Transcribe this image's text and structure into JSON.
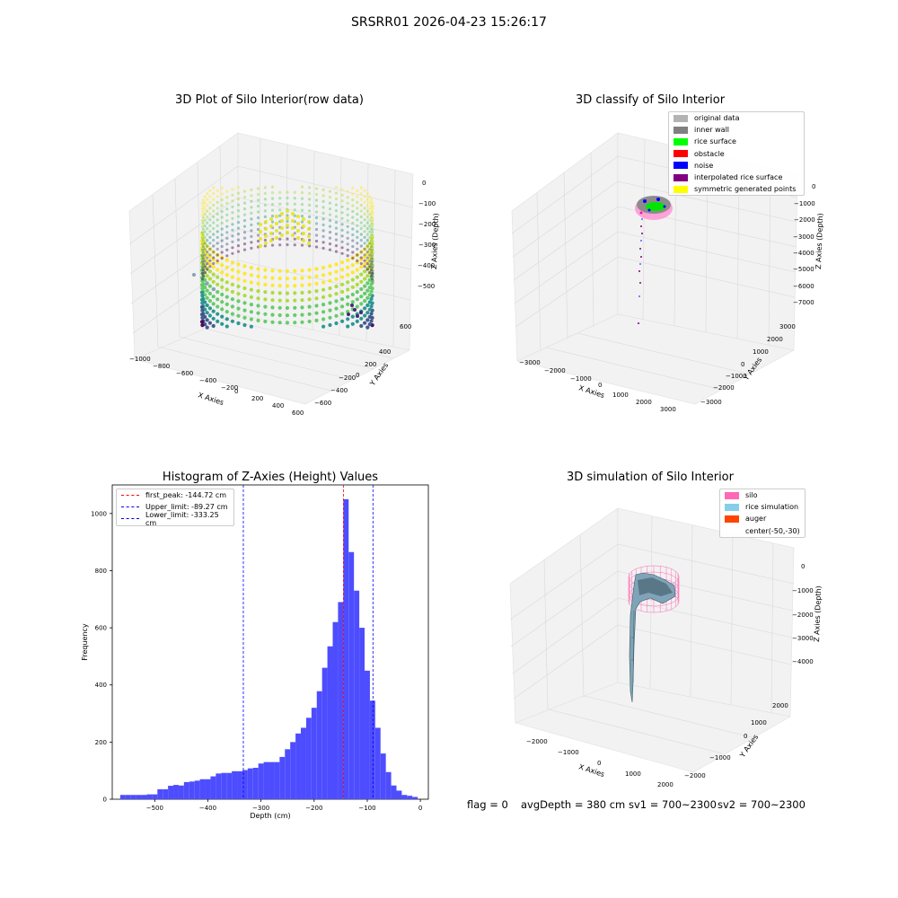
{
  "figure": {
    "suptitle": "SRSRR01 2026-04-23 15:26:17",
    "status": {
      "flag": "flag = 0",
      "avg_depth": "avgDepth = 380 cm",
      "sv1": "sv1 = 700~2300",
      "sv2": "sv2 = 700~2300"
    }
  },
  "panels": {
    "raw3d": {
      "title": "3D Plot of Silo Interior(row data)",
      "xlabel": "X Axies",
      "ylabel": "Y Axies",
      "zlabel": "Z Axies (Depth)",
      "xticks": [
        "−1000",
        "−800",
        "−600",
        "−400",
        "−200",
        "0",
        "200",
        "400",
        "600"
      ],
      "yticks": [
        "600",
        "400",
        "200",
        "0",
        "−200",
        "−400",
        "−600"
      ],
      "zticks": [
        "0",
        "−100",
        "−200",
        "−300",
        "−400",
        "−500"
      ]
    },
    "classify3d": {
      "title": "3D classify of Silo Interior",
      "xlabel": "X Axies",
      "ylabel": "Y Axies",
      "zlabel": "Z Axies (Depth)",
      "xticks": [
        "−3000",
        "−2000",
        "−1000",
        "0",
        "1000",
        "2000",
        "3000"
      ],
      "yticks": [
        "3000",
        "2000",
        "1000",
        "0",
        "−1000",
        "−2000",
        "−3000"
      ],
      "zticks": [
        "0",
        "−1000",
        "−2000",
        "−3000",
        "−4000",
        "−5000",
        "−6000",
        "−7000"
      ],
      "legend": [
        {
          "label": "original data",
          "color": "#b3b3b3"
        },
        {
          "label": "inner wall",
          "color": "#808080"
        },
        {
          "label": "rice surface",
          "color": "#00ff00"
        },
        {
          "label": "obstacle",
          "color": "#ff0000"
        },
        {
          "label": "noise",
          "color": "#0000ff"
        },
        {
          "label": "interpolated rice surface",
          "color": "#800080"
        },
        {
          "label": "symmetric generated points",
          "color": "#ffff00"
        }
      ]
    },
    "simulation3d": {
      "title": "3D simulation of Silo Interior",
      "xlabel": "X Axies",
      "ylabel": "Y Axies",
      "zlabel": "Z Axies (Depth)",
      "xticks": [
        "−2000",
        "−1000",
        "0",
        "1000",
        "2000"
      ],
      "yticks": [
        "2000",
        "1000",
        "0",
        "−1000",
        "−2000"
      ],
      "zticks": [
        "0",
        "−1000",
        "−2000",
        "−3000",
        "−4000"
      ],
      "legend": [
        {
          "label": "silo",
          "color": "#ff69b4"
        },
        {
          "label": "rice simulation",
          "color": "#87ceeb"
        },
        {
          "label": "auger",
          "color": "#ff4500"
        },
        {
          "label": "center(-50,-30)",
          "color": ""
        }
      ]
    }
  },
  "chart_data": [
    {
      "type": "scatter",
      "subtype": "3d",
      "title": "3D Plot of Silo Interior(row data)",
      "xlabel": "X Axies",
      "ylabel": "Y Axies",
      "zlabel": "Z Axies (Depth)",
      "xlim": [
        -1000,
        600
      ],
      "ylim": [
        -600,
        600
      ],
      "zlim": [
        -550,
        0
      ],
      "colormap": "viridis",
      "grid": true
    },
    {
      "type": "scatter",
      "subtype": "3d",
      "title": "3D classify of Silo Interior",
      "xlabel": "X Axies",
      "ylabel": "Y Axies",
      "zlabel": "Z Axies (Depth)",
      "xlim": [
        -3000,
        3000
      ],
      "ylim": [
        -3000,
        3000
      ],
      "zlim": [
        -7000,
        0
      ],
      "series": [
        {
          "name": "original data",
          "color": "#b3b3b3"
        },
        {
          "name": "inner wall",
          "color": "#808080"
        },
        {
          "name": "rice surface",
          "color": "#00ff00"
        },
        {
          "name": "obstacle",
          "color": "#ff0000"
        },
        {
          "name": "noise",
          "color": "#0000ff"
        },
        {
          "name": "interpolated rice surface",
          "color": "#800080"
        },
        {
          "name": "symmetric generated points",
          "color": "#ffff00"
        }
      ],
      "legend_position": "top-right",
      "grid": true
    },
    {
      "type": "bar",
      "subtype": "histogram",
      "title": "Histogram of Z-Axies (Height) Values",
      "xlabel": "Depth (cm)",
      "ylabel": "Frequency",
      "xlim": [
        -580,
        15
      ],
      "ylim": [
        0,
        1100
      ],
      "xticks": [
        -500,
        -400,
        -300,
        -200,
        -100,
        0
      ],
      "yticks": [
        0,
        200,
        400,
        600,
        800,
        1000
      ],
      "bar_color": "#4d4dff",
      "bin_width": 10,
      "bin_starts": [
        -565,
        -555,
        -545,
        -535,
        -525,
        -515,
        -505,
        -495,
        -485,
        -475,
        -465,
        -455,
        -445,
        -435,
        -425,
        -415,
        -405,
        -395,
        -385,
        -375,
        -365,
        -355,
        -345,
        -335,
        -325,
        -315,
        -305,
        -295,
        -285,
        -275,
        -265,
        -255,
        -245,
        -235,
        -225,
        -215,
        -205,
        -195,
        -185,
        -175,
        -165,
        -155,
        -145,
        -135,
        -125,
        -115,
        -105,
        -95,
        -85,
        -75,
        -65,
        -55,
        -45,
        -35,
        -25,
        -15
      ],
      "values": [
        15,
        15,
        15,
        15,
        15,
        17,
        17,
        35,
        35,
        47,
        50,
        48,
        60,
        62,
        65,
        70,
        70,
        80,
        90,
        92,
        92,
        98,
        98,
        102,
        108,
        110,
        125,
        130,
        130,
        130,
        148,
        175,
        200,
        230,
        250,
        285,
        320,
        378,
        460,
        535,
        620,
        690,
        1050,
        865,
        730,
        600,
        450,
        345,
        250,
        160,
        95,
        48,
        30,
        15,
        12,
        8
      ],
      "vlines": [
        {
          "name": "first_peak",
          "label": "first_peak: -144.72 cm",
          "x": -144.72,
          "color": "#ff0000"
        },
        {
          "name": "upper_limit",
          "label": "Upper_limit: -89.27 cm",
          "x": -89.27,
          "color": "#0000ff"
        },
        {
          "name": "lower_limit",
          "label": "Lower_limit: -333.25 cm",
          "x": -333.25,
          "color": "#0000ff"
        }
      ],
      "legend_position": "top-left"
    },
    {
      "type": "area",
      "subtype": "3d-surface",
      "title": "3D simulation of Silo Interior",
      "xlabel": "X Axies",
      "ylabel": "Y Axies",
      "zlabel": "Z Axies (Depth)",
      "xlim": [
        -2500,
        2500
      ],
      "ylim": [
        -2500,
        2500
      ],
      "zlim": [
        -5000,
        300
      ],
      "series": [
        {
          "name": "silo",
          "color": "#ff69b4"
        },
        {
          "name": "rice simulation",
          "color": "#87ceeb"
        },
        {
          "name": "auger",
          "color": "#ff4500"
        },
        {
          "name": "center(-50,-30)",
          "color": ""
        }
      ],
      "legend_position": "top-right",
      "grid": true
    }
  ]
}
